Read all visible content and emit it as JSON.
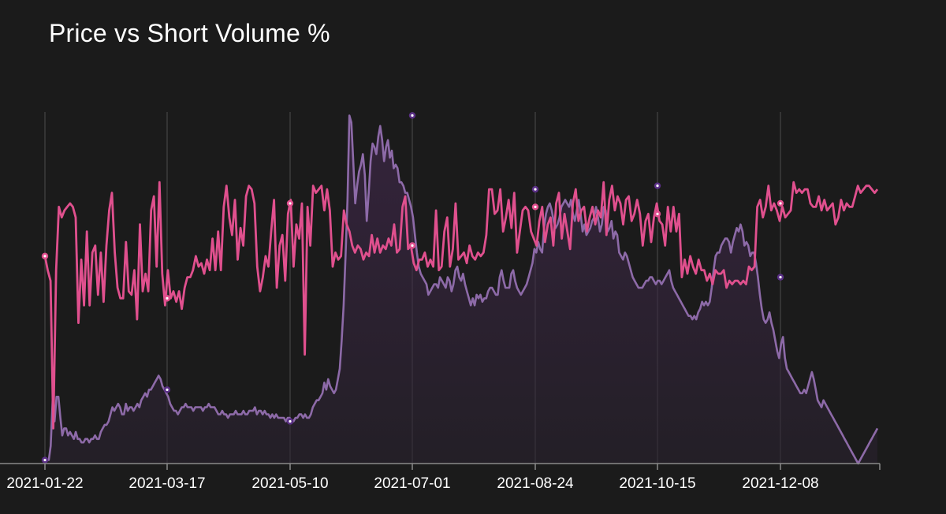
{
  "chart_data": {
    "type": "line",
    "title": "Price vs Short Volume %",
    "x_tick_labels": [
      "2021-01-22",
      "2021-03-17",
      "2021-05-10",
      "2021-07-01",
      "2021-08-24",
      "2021-10-15",
      "2021-12-08"
    ],
    "x_range": [
      "2021-01-22",
      "2022-01-27"
    ],
    "grid": "vertical",
    "legend": "none",
    "series": [
      {
        "color": "#e0508e",
        "style": "line",
        "marked_values": [
          59,
          47,
          74,
          62,
          73,
          71,
          74
        ],
        "values": [
          59,
          55,
          52,
          10,
          55,
          73,
          70,
          72,
          73,
          74,
          73,
          70,
          40,
          58,
          45,
          66,
          45,
          60,
          62,
          48,
          60,
          46,
          62,
          72,
          77,
          60,
          50,
          47,
          47,
          63,
          49,
          48,
          55,
          41,
          68,
          49,
          54,
          49,
          72,
          76,
          56,
          80,
          54,
          45,
          55,
          47,
          49,
          46,
          49,
          44,
          50,
          53,
          53,
          55,
          59,
          56,
          57,
          54,
          58,
          55,
          64,
          55,
          66,
          55,
          73,
          79,
          70,
          65,
          75,
          58,
          67,
          62,
          76,
          79,
          78,
          74,
          56,
          49,
          53,
          59,
          56,
          66,
          75,
          50,
          62,
          65,
          52,
          71,
          75,
          56,
          68,
          64,
          74,
          31,
          73,
          62,
          79,
          77,
          78,
          79,
          72,
          78,
          72,
          56,
          60,
          58,
          59,
          72,
          68,
          66,
          62,
          60,
          62,
          61,
          58,
          60,
          59,
          65,
          60,
          64,
          60,
          62,
          61,
          64,
          62,
          68,
          60,
          61,
          73,
          76,
          61,
          62,
          57,
          55,
          58,
          58,
          60,
          56,
          58,
          56,
          72,
          55,
          56,
          66,
          70,
          56,
          61,
          74,
          58,
          59,
          60,
          57,
          62,
          59,
          58,
          60,
          59,
          60,
          65,
          78,
          78,
          71,
          72,
          78,
          66,
          70,
          75,
          67,
          77,
          60,
          66,
          72,
          73,
          72,
          66,
          64,
          62,
          69,
          73,
          63,
          68,
          70,
          62,
          74,
          77,
          64,
          71,
          66,
          61,
          74,
          78,
          69,
          72,
          73,
          66,
          70,
          73,
          68,
          72,
          70,
          80,
          65,
          75,
          79,
          72,
          76,
          74,
          68,
          75,
          76,
          69,
          71,
          75,
          71,
          62,
          69,
          71,
          63,
          70,
          74,
          69,
          68,
          62,
          73,
          66,
          73,
          66,
          71,
          53,
          58,
          54,
          59,
          56,
          54,
          58,
          55,
          55,
          52,
          54,
          51,
          55,
          54,
          54,
          55,
          50,
          52,
          51,
          52,
          52,
          51,
          52,
          51,
          56,
          55,
          56,
          73,
          75,
          70,
          73,
          79,
          72,
          74,
          72,
          69,
          73,
          70,
          71,
          72,
          80,
          77,
          78,
          77,
          78,
          78,
          74,
          73,
          73,
          76,
          72,
          75,
          72,
          73,
          74,
          68,
          70,
          75,
          72,
          74,
          73,
          73,
          76,
          79,
          77,
          78,
          79,
          79,
          78,
          77,
          78
        ]
      },
      {
        "color": "#8d6aa8",
        "style": "area",
        "marked_values": [
          1,
          21,
          12,
          99,
          78,
          79,
          53
        ],
        "values": [
          1,
          1,
          1,
          5,
          18,
          12,
          19,
          19,
          13,
          8,
          10,
          10,
          8,
          9,
          8,
          7,
          9,
          7,
          7,
          6,
          6,
          7,
          7,
          6,
          7,
          7,
          8,
          7,
          7,
          9,
          10,
          11,
          11,
          12,
          14,
          16,
          15,
          16,
          17,
          16,
          14,
          14,
          17,
          15,
          16,
          16,
          15,
          16,
          17,
          16,
          18,
          19,
          20,
          19,
          21,
          21,
          22,
          23,
          24,
          25,
          24,
          22,
          21,
          20,
          19,
          17,
          16,
          15,
          15,
          14,
          15,
          16,
          16,
          17,
          16,
          16,
          16,
          15,
          16,
          16,
          16,
          16,
          15,
          16,
          16,
          17,
          16,
          16,
          16,
          15,
          14,
          14,
          15,
          14,
          14,
          13,
          14,
          14,
          14,
          15,
          14,
          14,
          14,
          15,
          14,
          14,
          15,
          15,
          15,
          16,
          14,
          15,
          15,
          14,
          15,
          14,
          14,
          13,
          14,
          13,
          14,
          13,
          13,
          13,
          13,
          12,
          13,
          13,
          12,
          12,
          13,
          13,
          14,
          14,
          13,
          14,
          13,
          13,
          14,
          16,
          17,
          18,
          18,
          19,
          20,
          23,
          21,
          24,
          22,
          21,
          20,
          21,
          24,
          27,
          35,
          45,
          59,
          75,
          99,
          97,
          86,
          74,
          79,
          83,
          85,
          88,
          82,
          69,
          77,
          86,
          91,
          90,
          88,
          93,
          96,
          92,
          86,
          90,
          92,
          87,
          89,
          84,
          85,
          84,
          80,
          80,
          79,
          77,
          77,
          75,
          73,
          70,
          65,
          60,
          56,
          54,
          53,
          52,
          51,
          48,
          49,
          50,
          51,
          51,
          50,
          53,
          52,
          51,
          50,
          53,
          52,
          49,
          51,
          55,
          56,
          53,
          52,
          54,
          51,
          49,
          47,
          45,
          47,
          45,
          48,
          47,
          48,
          46,
          47,
          47,
          49,
          50,
          50,
          49,
          48,
          48,
          53,
          55,
          52,
          50,
          50,
          50,
          54,
          55,
          52,
          50,
          49,
          48,
          49,
          50,
          51,
          53,
          55,
          57,
          61,
          60,
          63,
          61,
          60,
          67,
          71,
          73,
          74,
          72,
          69,
          67,
          68,
          70,
          73,
          74,
          75,
          74,
          73,
          75,
          71,
          69,
          72,
          75,
          71,
          66,
          68,
          65,
          66,
          67,
          69,
          70,
          73,
          70,
          66,
          68,
          73,
          72,
          66,
          67,
          69,
          64,
          66,
          65,
          60,
          59,
          58,
          60,
          59,
          57,
          55,
          53,
          52,
          51,
          50,
          50,
          50,
          51,
          52,
          52,
          53,
          53,
          52,
          51,
          52,
          52,
          51,
          52,
          53,
          54,
          55,
          52,
          50,
          49,
          48,
          47,
          46,
          45,
          44,
          43,
          42,
          42,
          41,
          42,
          41,
          43,
          44,
          46,
          45,
          46,
          45,
          46,
          50,
          55,
          59,
          60,
          60,
          62,
          63,
          64,
          64,
          63,
          60,
          63,
          65,
          67,
          66,
          68,
          66,
          62,
          63,
          62,
          59,
          60,
          60,
          57,
          53,
          48,
          44,
          41,
          40,
          41,
          43,
          40,
          38,
          35,
          32,
          30,
          34,
          36,
          30,
          27,
          26,
          25,
          24,
          23,
          22,
          21,
          20,
          20,
          21,
          20,
          22,
          24,
          26,
          24,
          21,
          18,
          17,
          16,
          18,
          17,
          16,
          15,
          14,
          13,
          12,
          11,
          10,
          9,
          8,
          7,
          6,
          5,
          4,
          3,
          2,
          1,
          0,
          1,
          2,
          3,
          4,
          5,
          6,
          7,
          8,
          9,
          10
        ]
      }
    ]
  }
}
